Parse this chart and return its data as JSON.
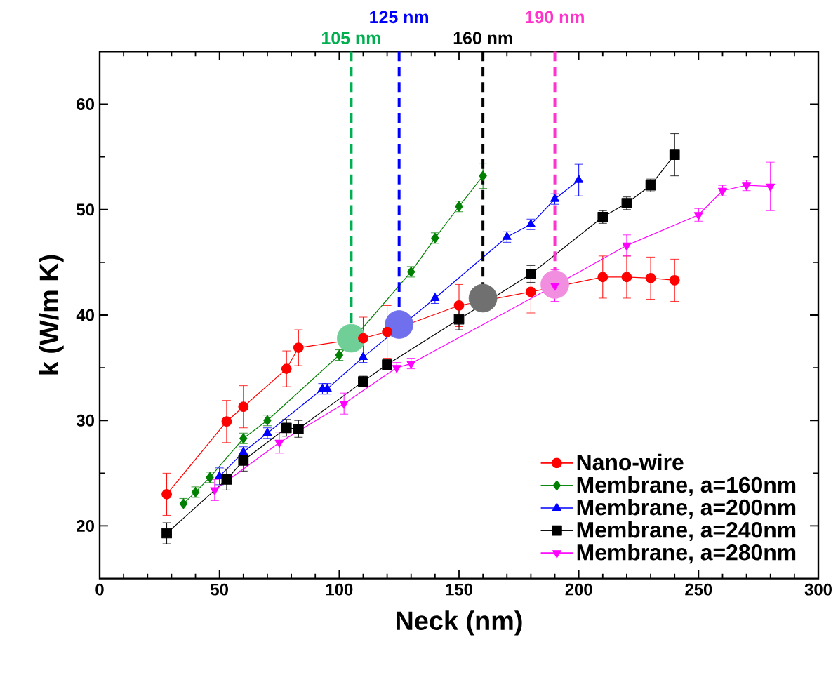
{
  "chart_data": {
    "type": "line",
    "xlabel": "Neck (nm)",
    "ylabel": "k (W/m K)",
    "xlim": [
      0,
      300
    ],
    "ylim": [
      15,
      65
    ],
    "xticks": [
      0,
      50,
      100,
      150,
      200,
      250,
      300
    ],
    "yticks": [
      20,
      30,
      40,
      50,
      60
    ],
    "grid": false,
    "legend": "bottom right",
    "line_style": "solid",
    "series": [
      {
        "name": "Nano-wire",
        "color": "#ff0000",
        "marker": "circle",
        "x": [
          28,
          53,
          60,
          78,
          83,
          110,
          120,
          150,
          180,
          210,
          220,
          230,
          240
        ],
        "values": [
          23.0,
          29.9,
          31.3,
          34.9,
          36.9,
          37.8,
          38.4,
          40.9,
          42.2,
          43.6,
          43.6,
          43.5,
          43.3
        ],
        "errors": [
          2,
          2,
          2,
          1.7,
          1.7,
          2,
          2.5,
          2,
          2,
          2,
          2,
          2,
          2
        ]
      },
      {
        "name": "Membrane, a=160nm",
        "color": "#008000",
        "marker": "diamond",
        "x": [
          35,
          40,
          46,
          60,
          70,
          100,
          130,
          140,
          150,
          160
        ],
        "values": [
          22.1,
          23.2,
          24.6,
          28.3,
          30.0,
          36.2,
          44.1,
          47.3,
          50.3,
          53.2
        ],
        "errors": [
          0.5,
          0.5,
          0.5,
          0.5,
          0.5,
          0.5,
          0.5,
          0.5,
          0.5,
          1.2
        ]
      },
      {
        "name": "Membrane, a=200nm",
        "color": "#0000ff",
        "marker": "triangle",
        "x": [
          50,
          60,
          70,
          93,
          95,
          110,
          140,
          170,
          180,
          190,
          200
        ],
        "values": [
          24.7,
          27.0,
          28.8,
          33.0,
          33.0,
          36.0,
          41.6,
          47.4,
          48.6,
          51.0,
          52.8
        ],
        "errors": [
          0.8,
          0.5,
          0.5,
          0.5,
          0.5,
          0.5,
          0.5,
          0.5,
          0.5,
          0.5,
          1.5
        ]
      },
      {
        "name": "Membrane, a=240nm",
        "color": "#000000",
        "marker": "square",
        "x": [
          28,
          53,
          60,
          78,
          83,
          110,
          120,
          150,
          180,
          210,
          220,
          230,
          240
        ],
        "values": [
          19.3,
          24.4,
          26.2,
          29.3,
          29.2,
          33.7,
          35.3,
          39.6,
          43.9,
          49.3,
          50.6,
          52.3,
          55.2
        ],
        "errors": [
          1,
          1,
          1,
          0.8,
          0.8,
          0.5,
          0.5,
          1,
          0.8,
          0.6,
          0.6,
          0.6,
          2
        ]
      },
      {
        "name": "Membrane, a=280nm",
        "color": "#ff00ff",
        "marker": "triangle down",
        "x": [
          48,
          75,
          102,
          124,
          130,
          190,
          220,
          250,
          260,
          270,
          280
        ],
        "values": [
          23.4,
          27.9,
          31.6,
          35.0,
          35.4,
          42.8,
          46.6,
          49.5,
          51.8,
          52.3,
          52.2
        ],
        "errors": [
          1,
          1,
          1,
          0.5,
          0.5,
          1.5,
          1,
          0.6,
          0.5,
          0.5,
          2.3
        ]
      },
      {
        "type": "scatter",
        "marker": "circle",
        "x": [
          105,
          125,
          160,
          190
        ],
        "values": [
          37.8,
          39.1,
          41.6,
          42.9
        ],
        "colors": [
          "#6fcf97",
          "#7070ee",
          "#707070",
          "#f28ee0"
        ]
      }
    ],
    "ref_lines": [
      {
        "axis": "x",
        "value": 105,
        "label": "105 nm",
        "color": "#00b050",
        "line_style": "dashed"
      },
      {
        "axis": "x",
        "value": 125,
        "label": "125 nm",
        "color": "#0000ff",
        "line_style": "dashed"
      },
      {
        "axis": "x",
        "value": 160,
        "label": "160 nm",
        "color": "#000000",
        "line_style": "dashed"
      },
      {
        "axis": "x",
        "value": 190,
        "label": "190 nm",
        "color": "#ff33cc",
        "line_style": "dashed"
      }
    ]
  }
}
